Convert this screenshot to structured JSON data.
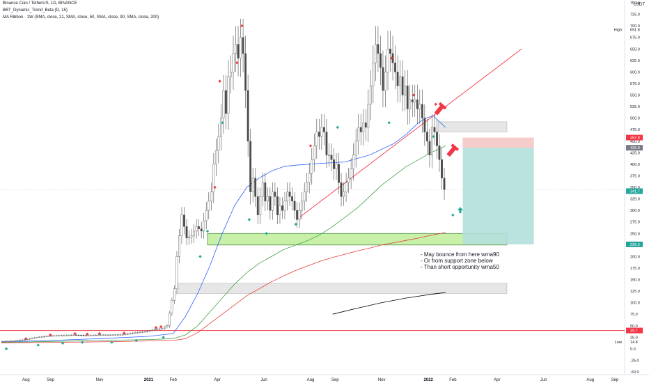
{
  "header": {
    "line1": "Binance Coin / TetherUS, 1D, BINANCE",
    "line2": "BBT_Dynamic_Trend_Beta (D, 15)",
    "line3": "MA Ribbon · 1W (SMA, close, 21, SMA, close, 50, SMA, close, 90, SMA, close, 200)"
  },
  "annotations": [
    "- May bounce from here wma90",
    "- Or from support zone below",
    "- Than short opportunity wma50"
  ],
  "chart_data": {
    "type": "candlestick",
    "symbol": "Binance Coin / TetherUS, 1D, BINANCE",
    "y_axis": {
      "unit_label": "USDT",
      "range": [
        -50,
        750
      ],
      "ticks": [
        750,
        725,
        700,
        675,
        650,
        625,
        600,
        575,
        550,
        525,
        500,
        475,
        450,
        425,
        400,
        375,
        350,
        325,
        300,
        275,
        250,
        225,
        200,
        175,
        150,
        125,
        100,
        75,
        50,
        25,
        0,
        -25,
        -50
      ]
    },
    "x_axis": {
      "ticks": [
        "Aug",
        "Sep",
        "Nov",
        "2021",
        "Feb",
        "Apr",
        "Jun",
        "Aug",
        "Sep",
        "Nov",
        "2022",
        "Feb",
        "Apr",
        "Jun",
        "Aug",
        "Sep"
      ],
      "tick_index": [
        10,
        20,
        40,
        60,
        70,
        88,
        107,
        126,
        136,
        155,
        174,
        184,
        202,
        221,
        240,
        250
      ]
    },
    "series": [
      {
        "name": "BNBUSDT",
        "kind": "price",
        "points": [
          [
            0,
            16
          ],
          [
            5,
            17
          ],
          [
            10,
            20
          ],
          [
            15,
            25
          ],
          [
            20,
            28
          ],
          [
            25,
            29
          ],
          [
            30,
            30
          ],
          [
            35,
            29
          ],
          [
            40,
            30
          ],
          [
            45,
            30
          ],
          [
            50,
            31
          ],
          [
            55,
            35
          ],
          [
            60,
            38
          ],
          [
            63,
            42
          ],
          [
            66,
            44
          ],
          [
            68,
            50
          ],
          [
            70,
            105
          ],
          [
            71,
            130
          ],
          [
            72,
            200
          ],
          [
            73,
            245
          ],
          [
            74,
            290
          ],
          [
            76,
            240
          ],
          [
            78,
            245
          ],
          [
            80,
            265
          ],
          [
            82,
            255
          ],
          [
            84,
            300
          ],
          [
            86,
            340
          ],
          [
            87,
            400
          ],
          [
            88,
            430
          ],
          [
            89,
            460
          ],
          [
            90,
            500
          ],
          [
            91,
            560
          ],
          [
            92,
            510
          ],
          [
            93,
            590
          ],
          [
            94,
            600
          ],
          [
            95,
            640
          ],
          [
            96,
            660
          ],
          [
            97,
            630
          ],
          [
            98,
            675
          ],
          [
            99,
            640
          ],
          [
            100,
            560
          ],
          [
            101,
            450
          ],
          [
            102,
            340
          ],
          [
            103,
            370
          ],
          [
            104,
            330
          ],
          [
            105,
            290
          ],
          [
            106,
            330
          ],
          [
            107,
            360
          ],
          [
            108,
            320
          ],
          [
            109,
            330
          ],
          [
            110,
            300
          ],
          [
            111,
            340
          ],
          [
            112,
            330
          ],
          [
            113,
            290
          ],
          [
            114,
            310
          ],
          [
            115,
            300
          ],
          [
            116,
            320
          ],
          [
            117,
            340
          ],
          [
            118,
            330
          ],
          [
            119,
            320
          ],
          [
            120,
            300
          ],
          [
            121,
            280
          ],
          [
            122,
            300
          ],
          [
            123,
            320
          ],
          [
            124,
            340
          ],
          [
            125,
            360
          ],
          [
            126,
            380
          ],
          [
            127,
            410
          ],
          [
            128,
            440
          ],
          [
            129,
            470
          ],
          [
            130,
            460
          ],
          [
            131,
            480
          ],
          [
            132,
            470
          ],
          [
            133,
            420
          ],
          [
            134,
            420
          ],
          [
            135,
            410
          ],
          [
            136,
            390
          ],
          [
            137,
            400
          ],
          [
            138,
            360
          ],
          [
            139,
            330
          ],
          [
            140,
            340
          ],
          [
            141,
            360
          ],
          [
            142,
            370
          ],
          [
            143,
            390
          ],
          [
            144,
            420
          ],
          [
            145,
            450
          ],
          [
            146,
            480
          ],
          [
            147,
            470
          ],
          [
            148,
            490
          ],
          [
            149,
            480
          ],
          [
            150,
            530
          ],
          [
            151,
            570
          ],
          [
            152,
            620
          ],
          [
            153,
            660
          ],
          [
            154,
            640
          ],
          [
            155,
            610
          ],
          [
            156,
            560
          ],
          [
            157,
            600
          ],
          [
            158,
            650
          ],
          [
            159,
            640
          ],
          [
            160,
            620
          ],
          [
            161,
            600
          ],
          [
            162,
            570
          ],
          [
            163,
            590
          ],
          [
            164,
            550
          ],
          [
            165,
            570
          ],
          [
            166,
            520
          ],
          [
            167,
            540
          ],
          [
            168,
            535
          ],
          [
            169,
            540
          ],
          [
            170,
            520
          ],
          [
            171,
            530
          ],
          [
            172,
            500
          ],
          [
            173,
            470
          ],
          [
            174,
            450
          ],
          [
            175,
            420
          ],
          [
            176,
            480
          ],
          [
            177,
            470
          ],
          [
            178,
            440
          ],
          [
            179,
            410
          ],
          [
            180,
            370
          ],
          [
            181,
            345
          ]
        ]
      },
      {
        "name": "",
        "kind": "ma-blue",
        "points": [
          [
            0,
            15
          ],
          [
            20,
            18
          ],
          [
            40,
            22
          ],
          [
            60,
            27
          ],
          [
            70,
            33
          ],
          [
            75,
            70
          ],
          [
            80,
            120
          ],
          [
            85,
            180
          ],
          [
            90,
            250
          ],
          [
            95,
            310
          ],
          [
            100,
            350
          ],
          [
            105,
            370
          ],
          [
            110,
            385
          ],
          [
            115,
            395
          ],
          [
            120,
            398
          ],
          [
            130,
            402
          ],
          [
            140,
            405
          ],
          [
            150,
            420
          ],
          [
            160,
            445
          ],
          [
            165,
            465
          ],
          [
            170,
            490
          ],
          [
            173,
            500
          ],
          [
            176,
            505
          ],
          [
            178,
            495
          ],
          [
            181,
            480
          ]
        ]
      },
      {
        "name": "",
        "kind": "ma-green",
        "points": [
          [
            0,
            14
          ],
          [
            20,
            16
          ],
          [
            40,
            18
          ],
          [
            60,
            20
          ],
          [
            70,
            22
          ],
          [
            75,
            30
          ],
          [
            80,
            50
          ],
          [
            85,
            80
          ],
          [
            90,
            110
          ],
          [
            95,
            140
          ],
          [
            100,
            165
          ],
          [
            105,
            185
          ],
          [
            110,
            200
          ],
          [
            115,
            215
          ],
          [
            120,
            225
          ],
          [
            125,
            235
          ],
          [
            130,
            248
          ],
          [
            135,
            265
          ],
          [
            140,
            285
          ],
          [
            145,
            305
          ],
          [
            150,
            330
          ],
          [
            155,
            355
          ],
          [
            160,
            375
          ],
          [
            165,
            395
          ],
          [
            170,
            410
          ],
          [
            175,
            425
          ],
          [
            178,
            432
          ],
          [
            181,
            440
          ]
        ]
      },
      {
        "name": "",
        "kind": "ma-red",
        "points": [
          [
            0,
            13
          ],
          [
            20,
            14
          ],
          [
            40,
            15
          ],
          [
            60,
            17
          ],
          [
            70,
            18
          ],
          [
            75,
            22
          ],
          [
            80,
            35
          ],
          [
            85,
            55
          ],
          [
            90,
            75
          ],
          [
            95,
            95
          ],
          [
            100,
            115
          ],
          [
            105,
            130
          ],
          [
            110,
            145
          ],
          [
            115,
            158
          ],
          [
            120,
            170
          ],
          [
            125,
            180
          ],
          [
            130,
            190
          ],
          [
            135,
            198
          ],
          [
            140,
            205
          ],
          [
            145,
            212
          ],
          [
            150,
            218
          ],
          [
            155,
            225
          ],
          [
            160,
            230
          ],
          [
            165,
            235
          ],
          [
            170,
            240
          ],
          [
            175,
            246
          ],
          [
            181,
            252
          ]
        ]
      },
      {
        "name": "",
        "kind": "ma-black",
        "points": [
          [
            135,
            75
          ],
          [
            145,
            88
          ],
          [
            155,
            100
          ],
          [
            165,
            110
          ],
          [
            175,
            118
          ],
          [
            181,
            122
          ]
        ]
      }
    ],
    "trendline": {
      "points": [
        [
          121,
          283
        ],
        [
          212,
          650
        ]
      ]
    },
    "horizontal_lines": [
      {
        "value": 39.7,
        "color": "#f23645"
      }
    ],
    "zones": [
      {
        "kind": "support",
        "from_index": 84,
        "to_index": 206,
        "range": [
          225,
          250
        ],
        "fill": "#c8f0a8",
        "stroke": "#2e7d32"
      },
      {
        "kind": "resistance",
        "from_index": 178,
        "to_index": 206,
        "range": [
          470,
          492
        ],
        "fill": "#e6e6e6",
        "stroke": "#bdbdbd"
      },
      {
        "kind": "lower",
        "from_index": 72,
        "to_index": 206,
        "range": [
          120,
          142
        ],
        "fill": "#e6e6e6",
        "stroke": "#bdbdbd"
      }
    ],
    "position": {
      "from_index": 188,
      "to_index": 217,
      "stop_range": [
        435.8,
        457.8
      ],
      "target_range": [
        226.3,
        435.8
      ]
    },
    "price_labels": [
      {
        "text": "691.8",
        "value": 691.8,
        "color": "#131722",
        "bg": "",
        "prefix": "High"
      },
      {
        "text": "457.8",
        "value": 457.8,
        "color": "#ffffff",
        "bg": "#f23645",
        "prefix": ""
      },
      {
        "text": "435.8",
        "value": 435.8,
        "color": "#ffffff",
        "bg": "#787b86",
        "prefix": ""
      },
      {
        "text": "341.7",
        "value": 341.7,
        "color": "#ffffff",
        "bg": "#26a69a",
        "prefix": ""
      },
      {
        "text": "226.3",
        "value": 226.3,
        "color": "#ffffff",
        "bg": "#26a69a",
        "prefix": ""
      },
      {
        "text": "39.7",
        "value": 39.7,
        "color": "#ffffff",
        "bg": "#f23645",
        "prefix": ""
      },
      {
        "text": "14.8",
        "value": 14.8,
        "color": "#131722",
        "bg": "",
        "prefix": "Low"
      }
    ],
    "colors": {
      "price": "#4a4a4a",
      "ma-blue": "#2962ff",
      "ma-green": "#43a047",
      "ma-red": "#e53935",
      "ma-black": "#000000",
      "trendline": "#f23645",
      "stop": "#f4c7c3",
      "target": "#b2dfdb",
      "up_marker": "#26a69a",
      "down_marker": "#f23645"
    },
    "markers": {
      "down": [
        [
          10,
          22
        ],
        [
          20,
          30
        ],
        [
          30,
          33
        ],
        [
          35,
          32
        ],
        [
          40,
          33
        ],
        [
          50,
          34
        ],
        [
          63,
          46
        ],
        [
          65,
          48
        ],
        [
          87,
          350
        ],
        [
          89,
          580
        ],
        [
          96,
          620
        ],
        [
          98,
          700
        ],
        [
          126,
          440
        ],
        [
          159,
          630
        ],
        [
          168,
          550
        ],
        [
          177,
          530
        ]
      ],
      "up": [
        [
          2,
          0
        ],
        [
          15,
          8
        ],
        [
          25,
          12
        ],
        [
          33,
          14
        ],
        [
          45,
          14
        ],
        [
          55,
          18
        ],
        [
          66,
          25
        ],
        [
          81,
          200
        ],
        [
          84,
          255
        ],
        [
          90,
          490
        ],
        [
          101,
          280
        ],
        [
          108,
          250
        ],
        [
          120,
          270
        ],
        [
          137,
          480
        ],
        [
          158,
          490
        ],
        [
          176,
          460
        ],
        [
          184,
          290
        ]
      ]
    },
    "pencil_markers": [
      [
        178,
        515
      ],
      [
        183,
        425
      ]
    ]
  }
}
